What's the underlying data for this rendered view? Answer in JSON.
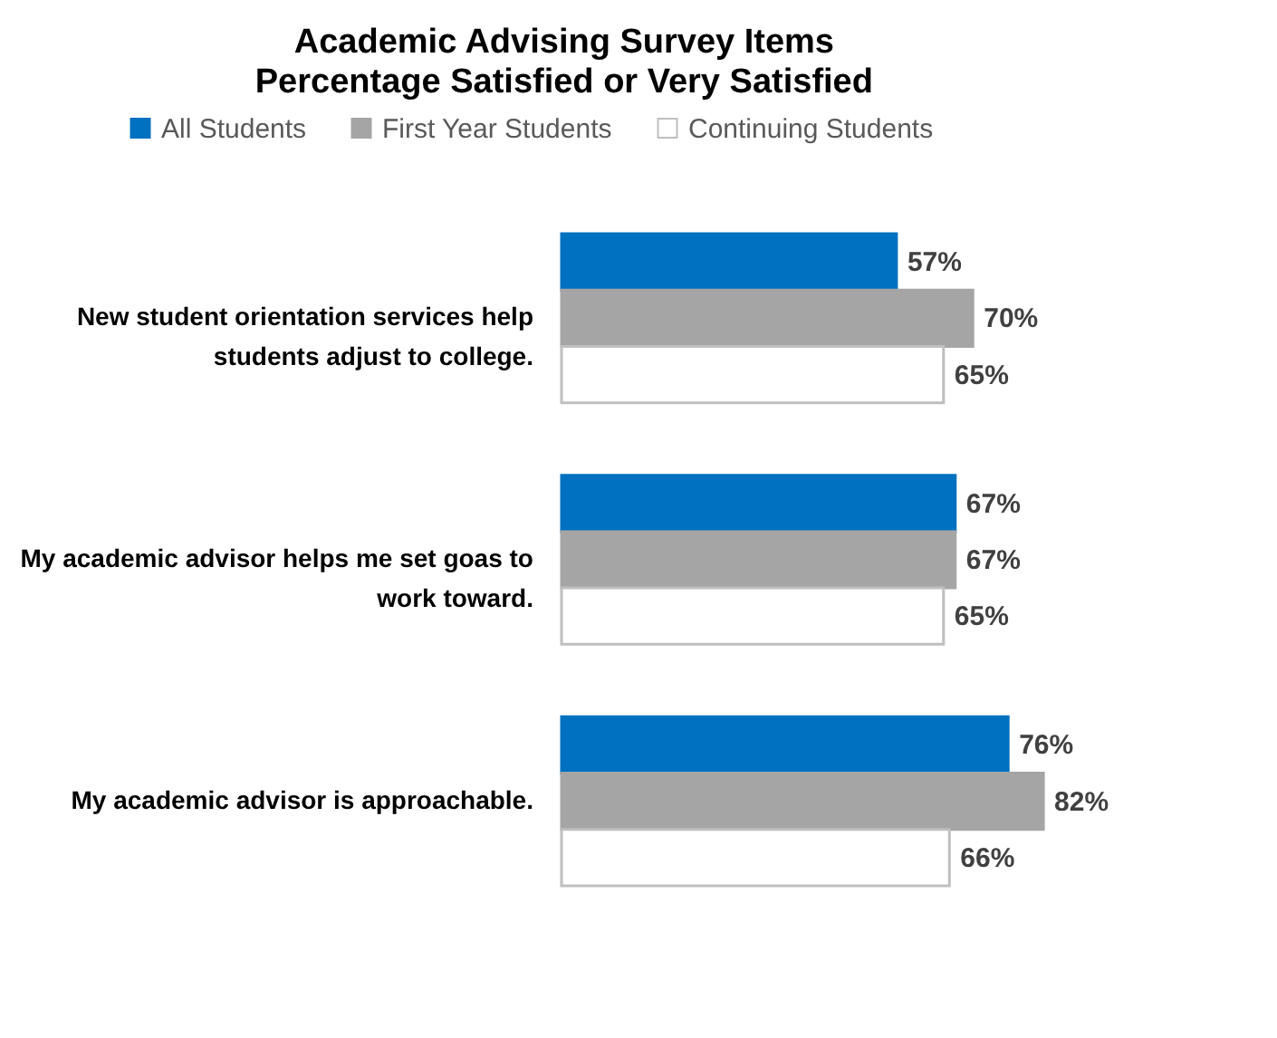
{
  "chart_data": {
    "type": "bar",
    "orientation": "horizontal",
    "title": "Academic Advising Survey Items",
    "subtitle": "Percentage Satisfied or Very Satisfied",
    "categories": [
      "New student orientation services help students adjust to college.",
      "My academic advisor helps me set goas to work toward.",
      "My academic advisor is approachable."
    ],
    "series": [
      {
        "name": "All Students",
        "color": "#0070c0",
        "values": [
          57,
          67,
          76
        ],
        "value_labels": [
          "57%",
          "67%",
          "76%"
        ]
      },
      {
        "name": "First Year Students",
        "color": "#a5a5a5",
        "values": [
          70,
          67,
          82
        ],
        "value_labels": [
          "70%",
          "67%",
          "82%"
        ]
      },
      {
        "name": "Continuing Students",
        "color": "#ffffff",
        "values": [
          65,
          65,
          66
        ],
        "value_labels": [
          "65%",
          "65%",
          "66%"
        ]
      }
    ],
    "legend": "top",
    "grid": false
  }
}
